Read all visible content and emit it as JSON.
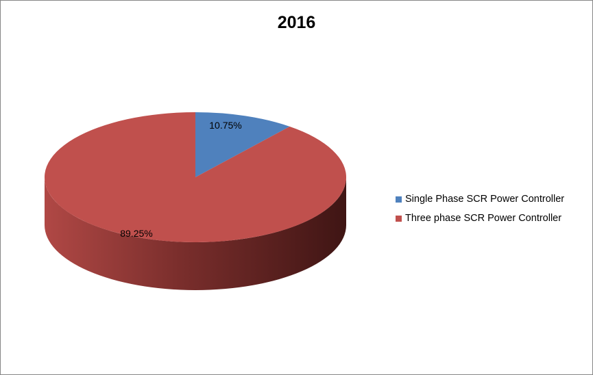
{
  "chart_data": {
    "type": "pie",
    "style": "3d",
    "title": "2016",
    "categories": [
      "Single Phase SCR Power Controller",
      "Three phase SCR Power Controller"
    ],
    "values": [
      10.75,
      89.25
    ],
    "data_labels": [
      "10.75%",
      "89.25%"
    ],
    "colors": [
      "#4f81bd",
      "#c0504d"
    ],
    "legend_placement": "right"
  }
}
